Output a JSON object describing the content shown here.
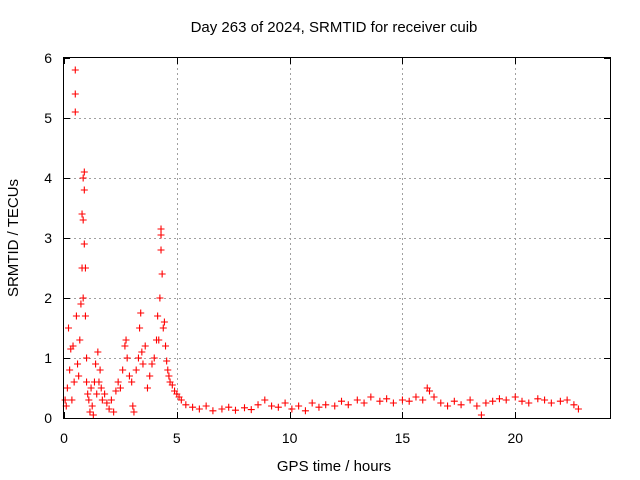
{
  "chart_data": {
    "type": "scatter",
    "title": "Day 263 of 2024, SRMTID for receiver cuib",
    "xlabel": "GPS time / hours",
    "ylabel": "SRMTID / TECUs",
    "xlim": [
      0,
      24.2
    ],
    "ylim": [
      0,
      6
    ],
    "xticks": [
      0,
      5,
      10,
      15,
      20
    ],
    "yticks": [
      0,
      1,
      2,
      3,
      4,
      5,
      6
    ],
    "grid": true,
    "marker": "+",
    "color": "#ff0000",
    "series": [
      {
        "name": "SRMTID",
        "points": [
          [
            0.05,
            0.3
          ],
          [
            0.1,
            0.2
          ],
          [
            0.15,
            0.5
          ],
          [
            0.2,
            1.5
          ],
          [
            0.25,
            0.8
          ],
          [
            0.3,
            1.15
          ],
          [
            0.35,
            0.3
          ],
          [
            0.4,
            1.2
          ],
          [
            0.45,
            0.6
          ],
          [
            0.5,
            5.8
          ],
          [
            0.5,
            5.4
          ],
          [
            0.5,
            5.1
          ],
          [
            0.55,
            1.7
          ],
          [
            0.6,
            0.9
          ],
          [
            0.65,
            0.7
          ],
          [
            0.7,
            1.3
          ],
          [
            0.75,
            1.9
          ],
          [
            0.8,
            3.4
          ],
          [
            0.8,
            2.5
          ],
          [
            0.85,
            4.0
          ],
          [
            0.85,
            3.3
          ],
          [
            0.85,
            2.0
          ],
          [
            0.9,
            4.1
          ],
          [
            0.9,
            3.8
          ],
          [
            0.9,
            2.9
          ],
          [
            0.95,
            2.5
          ],
          [
            0.95,
            1.7
          ],
          [
            1.0,
            1.0
          ],
          [
            1.0,
            0.6
          ],
          [
            1.05,
            0.4
          ],
          [
            1.1,
            0.3
          ],
          [
            1.15,
            0.1
          ],
          [
            1.2,
            0.5
          ],
          [
            1.25,
            0.2
          ],
          [
            1.3,
            0.05
          ],
          [
            1.35,
            0.6
          ],
          [
            1.4,
            0.9
          ],
          [
            1.45,
            0.4
          ],
          [
            1.5,
            1.1
          ],
          [
            1.55,
            0.6
          ],
          [
            1.6,
            0.8
          ],
          [
            1.65,
            0.5
          ],
          [
            1.7,
            0.3
          ],
          [
            1.8,
            0.4
          ],
          [
            1.9,
            0.25
          ],
          [
            2.0,
            0.15
          ],
          [
            2.1,
            0.3
          ],
          [
            2.2,
            0.1
          ],
          [
            2.3,
            0.45
          ],
          [
            2.4,
            0.6
          ],
          [
            2.5,
            0.5
          ],
          [
            2.6,
            0.8
          ],
          [
            2.7,
            1.2
          ],
          [
            2.75,
            1.3
          ],
          [
            2.8,
            1.0
          ],
          [
            2.9,
            0.7
          ],
          [
            3.0,
            0.6
          ],
          [
            3.05,
            0.2
          ],
          [
            3.1,
            0.1
          ],
          [
            3.2,
            0.8
          ],
          [
            3.3,
            1.0
          ],
          [
            3.35,
            1.5
          ],
          [
            3.4,
            1.75
          ],
          [
            3.45,
            1.1
          ],
          [
            3.5,
            0.9
          ],
          [
            3.6,
            1.2
          ],
          [
            3.7,
            0.5
          ],
          [
            3.8,
            0.7
          ],
          [
            3.9,
            0.9
          ],
          [
            4.0,
            1.0
          ],
          [
            4.1,
            1.3
          ],
          [
            4.15,
            1.7
          ],
          [
            4.2,
            1.3
          ],
          [
            4.25,
            2.0
          ],
          [
            4.3,
            2.8
          ],
          [
            4.3,
            3.05
          ],
          [
            4.3,
            3.15
          ],
          [
            4.35,
            2.4
          ],
          [
            4.4,
            1.5
          ],
          [
            4.45,
            1.6
          ],
          [
            4.5,
            1.2
          ],
          [
            4.55,
            0.95
          ],
          [
            4.6,
            0.8
          ],
          [
            4.65,
            0.7
          ],
          [
            4.7,
            0.6
          ],
          [
            4.8,
            0.55
          ],
          [
            4.9,
            0.45
          ],
          [
            5.0,
            0.4
          ],
          [
            5.1,
            0.35
          ],
          [
            5.2,
            0.3
          ],
          [
            5.4,
            0.22
          ],
          [
            5.7,
            0.18
          ],
          [
            6.0,
            0.15
          ],
          [
            6.3,
            0.2
          ],
          [
            6.6,
            0.12
          ],
          [
            7.0,
            0.15
          ],
          [
            7.3,
            0.18
          ],
          [
            7.6,
            0.13
          ],
          [
            8.0,
            0.17
          ],
          [
            8.3,
            0.14
          ],
          [
            8.6,
            0.22
          ],
          [
            8.9,
            0.3
          ],
          [
            9.2,
            0.2
          ],
          [
            9.5,
            0.18
          ],
          [
            9.8,
            0.25
          ],
          [
            10.1,
            0.15
          ],
          [
            10.4,
            0.2
          ],
          [
            10.7,
            0.12
          ],
          [
            11.0,
            0.25
          ],
          [
            11.3,
            0.18
          ],
          [
            11.6,
            0.22
          ],
          [
            12.0,
            0.2
          ],
          [
            12.3,
            0.28
          ],
          [
            12.6,
            0.22
          ],
          [
            13.0,
            0.3
          ],
          [
            13.3,
            0.25
          ],
          [
            13.6,
            0.35
          ],
          [
            14.0,
            0.28
          ],
          [
            14.3,
            0.32
          ],
          [
            14.6,
            0.25
          ],
          [
            15.0,
            0.3
          ],
          [
            15.3,
            0.28
          ],
          [
            15.6,
            0.35
          ],
          [
            15.9,
            0.3
          ],
          [
            16.1,
            0.5
          ],
          [
            16.2,
            0.45
          ],
          [
            16.4,
            0.35
          ],
          [
            16.7,
            0.25
          ],
          [
            17.0,
            0.2
          ],
          [
            17.3,
            0.28
          ],
          [
            17.6,
            0.22
          ],
          [
            18.0,
            0.3
          ],
          [
            18.3,
            0.2
          ],
          [
            18.5,
            0.05
          ],
          [
            18.7,
            0.25
          ],
          [
            19.0,
            0.28
          ],
          [
            19.3,
            0.32
          ],
          [
            19.6,
            0.3
          ],
          [
            20.0,
            0.35
          ],
          [
            20.3,
            0.28
          ],
          [
            20.6,
            0.25
          ],
          [
            21.0,
            0.32
          ],
          [
            21.3,
            0.3
          ],
          [
            21.6,
            0.25
          ],
          [
            22.0,
            0.28
          ],
          [
            22.3,
            0.3
          ],
          [
            22.6,
            0.22
          ],
          [
            22.8,
            0.15
          ]
        ]
      }
    ]
  }
}
